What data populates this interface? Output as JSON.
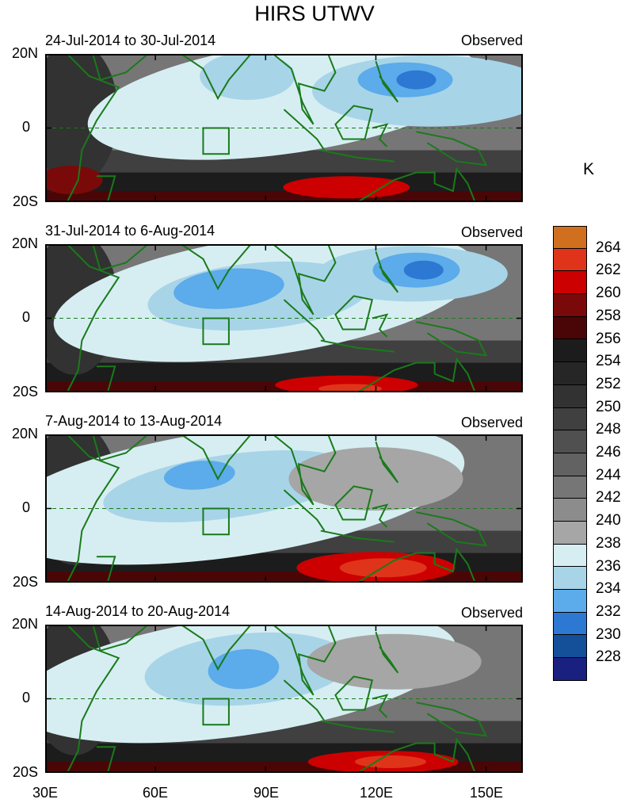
{
  "title": "HIRS UTWV",
  "panels": [
    {
      "date_range": "24-Jul-2014 to 30-Jul-2014",
      "tag": "Observed"
    },
    {
      "date_range": "31-Jul-2014 to 6-Aug-2014",
      "tag": "Observed"
    },
    {
      "date_range": "7-Aug-2014 to 13-Aug-2014",
      "tag": "Observed"
    },
    {
      "date_range": "14-Aug-2014 to 20-Aug-2014",
      "tag": "Observed"
    }
  ],
  "lat_labels": [
    "20N",
    "0",
    "20S"
  ],
  "lon_labels": [
    "30E",
    "60E",
    "90E",
    "120E",
    "150E"
  ],
  "colorbar": {
    "unit": "K",
    "labels": [
      "264",
      "262",
      "260",
      "258",
      "256",
      "254",
      "252",
      "250",
      "248",
      "246",
      "244",
      "242",
      "240",
      "238",
      "236",
      "234",
      "232",
      "230",
      "228"
    ],
    "colors": [
      "#d0701f",
      "#e0341a",
      "#cc0000",
      "#7a0a0a",
      "#4a0606",
      "#1c1c1c",
      "#262626",
      "#323232",
      "#404040",
      "#505050",
      "#626262",
      "#767676",
      "#8c8c8c",
      "#a6a6a6",
      "#d6eef2",
      "#a8d4e8",
      "#5cabea",
      "#2c78d2",
      "#144f9a",
      "#1a2080"
    ]
  },
  "map": {
    "lat_range": [
      -20,
      20
    ],
    "lon_range": [
      30,
      160
    ],
    "equator_line": "dashed",
    "box_region": {
      "lon": [
        73,
        80
      ],
      "lat": [
        -7,
        0
      ]
    }
  }
}
